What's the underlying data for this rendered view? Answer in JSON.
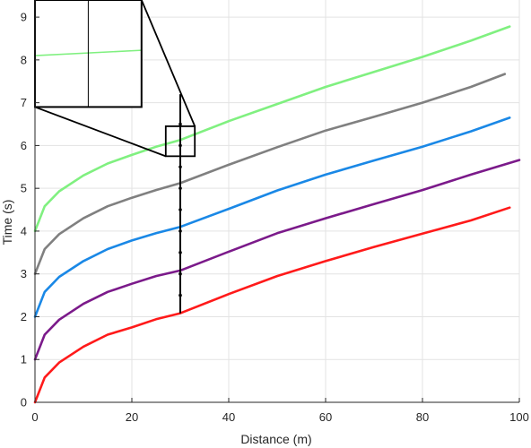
{
  "chart_data": {
    "type": "line",
    "title": "",
    "xlabel": "Distance (m)",
    "ylabel": "Time (s)",
    "xlim": [
      0,
      100
    ],
    "ylim": [
      0,
      9.4
    ],
    "xticks": [
      0,
      20,
      40,
      60,
      80,
      100
    ],
    "yticks": [
      0,
      1,
      2,
      3,
      4,
      5,
      6,
      7,
      8,
      9
    ],
    "grid": true,
    "series": [
      {
        "color": "#ff1a1a",
        "x": [
          0,
          2,
          5,
          10,
          15,
          20,
          25,
          30,
          40,
          50,
          60,
          70,
          80,
          90,
          98
        ],
        "y": [
          0,
          0.58,
          0.93,
          1.3,
          1.58,
          1.75,
          1.94,
          2.08,
          2.53,
          2.95,
          3.3,
          3.63,
          3.94,
          4.25,
          4.55
        ]
      },
      {
        "color": "#7b1a8a",
        "x": [
          0,
          2,
          5,
          10,
          15,
          20,
          25,
          30,
          40,
          50,
          60,
          70,
          80,
          90,
          100
        ],
        "y": [
          1.0,
          1.58,
          1.93,
          2.3,
          2.58,
          2.77,
          2.95,
          3.08,
          3.52,
          3.95,
          4.3,
          4.63,
          4.96,
          5.32,
          5.66
        ]
      },
      {
        "color": "#1a88e6",
        "x": [
          0,
          2,
          5,
          10,
          15,
          20,
          25,
          30,
          40,
          50,
          60,
          70,
          80,
          90,
          98
        ],
        "y": [
          2.0,
          2.58,
          2.93,
          3.3,
          3.58,
          3.78,
          3.95,
          4.1,
          4.52,
          4.95,
          5.32,
          5.65,
          5.97,
          6.33,
          6.65
        ]
      },
      {
        "color": "#808080",
        "x": [
          0,
          2,
          5,
          10,
          15,
          20,
          25,
          30,
          40,
          50,
          60,
          70,
          80,
          90,
          97
        ],
        "y": [
          3.0,
          3.58,
          3.93,
          4.3,
          4.58,
          4.78,
          4.96,
          5.12,
          5.55,
          5.96,
          6.35,
          6.67,
          7.0,
          7.37,
          7.67
        ]
      },
      {
        "color": "#80f080",
        "x": [
          0,
          2,
          5,
          10,
          15,
          20,
          25,
          30,
          40,
          50,
          60,
          70,
          80,
          90,
          98
        ],
        "y": [
          4.0,
          4.58,
          4.93,
          5.3,
          5.58,
          5.78,
          5.97,
          6.13,
          6.57,
          6.97,
          7.37,
          7.72,
          8.07,
          8.45,
          8.78
        ]
      }
    ],
    "annotations": {
      "vertical_line": {
        "x": 30,
        "y_from": 2.08,
        "y_to": 7.2,
        "marker_y": [
          2.5,
          3.0,
          3.5,
          4.0,
          4.5,
          5.0,
          5.5,
          6.0,
          6.5
        ]
      },
      "zoom_box": {
        "x": [
          27,
          33
        ],
        "y": [
          5.75,
          6.45
        ]
      },
      "inset": {
        "x": [
          0,
          22
        ],
        "y": [
          6.9,
          9.4
        ],
        "line_color": "#80f080",
        "line_y_frac": [
          0.52,
          0.47
        ],
        "divider_x_frac": 0.5
      }
    }
  }
}
